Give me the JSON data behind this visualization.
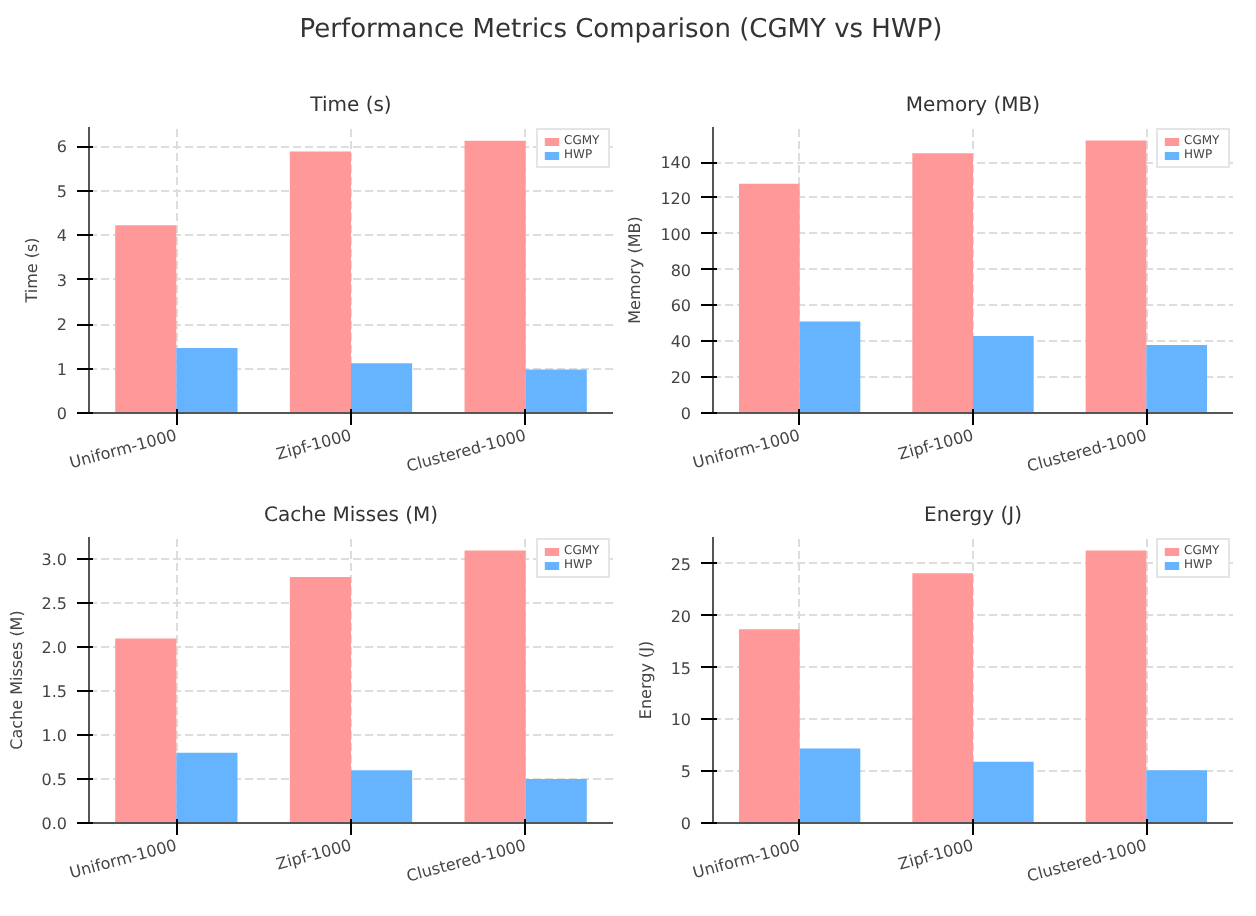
{
  "chart_data": [
    {
      "type": "other",
      "title": "Performance Metrics Comparison (CGMY vs HWP)"
    },
    {
      "type": "bar",
      "title": "Time (s)",
      "ylabel": "Time (s)",
      "categories": [
        "Uniform-1000",
        "Zipf-1000",
        "Clustered-1000"
      ],
      "series": [
        {
          "name": "CGMY",
          "color": "#ff9999",
          "values": [
            4.22,
            5.88,
            6.12
          ]
        },
        {
          "name": "HWP",
          "color": "#66b3ff",
          "values": [
            1.46,
            1.12,
            0.98
          ]
        }
      ],
      "ylim": [
        0,
        6.43
      ],
      "yticks": [
        0,
        1,
        2,
        3,
        4,
        5,
        6
      ],
      "grid": true,
      "legend": "top right"
    },
    {
      "type": "bar",
      "title": "Memory (MB)",
      "ylabel": "Memory (MB)",
      "categories": [
        "Uniform-1000",
        "Zipf-1000",
        "Clustered-1000"
      ],
      "series": [
        {
          "name": "CGMY",
          "color": "#ff9999",
          "values": [
            128,
            145,
            152
          ]
        },
        {
          "name": "HWP",
          "color": "#66b3ff",
          "values": [
            51,
            43,
            38
          ]
        }
      ],
      "ylim": [
        0,
        159.6
      ],
      "yticks": [
        0,
        20,
        40,
        60,
        80,
        100,
        120,
        140
      ],
      "grid": true,
      "legend": "top right"
    },
    {
      "type": "bar",
      "title": "Cache Misses (M)",
      "ylabel": "Cache Misses (M)",
      "categories": [
        "Uniform-1000",
        "Zipf-1000",
        "Clustered-1000"
      ],
      "series": [
        {
          "name": "CGMY",
          "color": "#ff9999",
          "values": [
            2.1,
            2.8,
            3.1
          ]
        },
        {
          "name": "HWP",
          "color": "#66b3ff",
          "values": [
            0.8,
            0.6,
            0.5
          ]
        }
      ],
      "ylim": [
        0,
        3.255
      ],
      "yticks": [
        {
          "value": 0,
          "label": "0.0"
        },
        0.5,
        {
          "value": 1,
          "label": "1.0"
        },
        1.5,
        {
          "value": 2,
          "label": "2.0"
        },
        2.5,
        {
          "value": 3,
          "label": "3.0"
        }
      ],
      "grid": true,
      "legend": "top right"
    },
    {
      "type": "bar",
      "title": "Energy (J)",
      "ylabel": "Energy (J)",
      "categories": [
        "Uniform-1000",
        "Zipf-1000",
        "Clustered-1000"
      ],
      "series": [
        {
          "name": "CGMY",
          "color": "#ff9999",
          "values": [
            18.7,
            24.1,
            26.3
          ]
        },
        {
          "name": "HWP",
          "color": "#66b3ff",
          "values": [
            7.2,
            5.9,
            5.1
          ]
        }
      ],
      "ylim": [
        0,
        27.6
      ],
      "yticks": [
        0,
        5,
        10,
        15,
        20,
        25
      ],
      "grid": true,
      "legend": "top right"
    }
  ]
}
